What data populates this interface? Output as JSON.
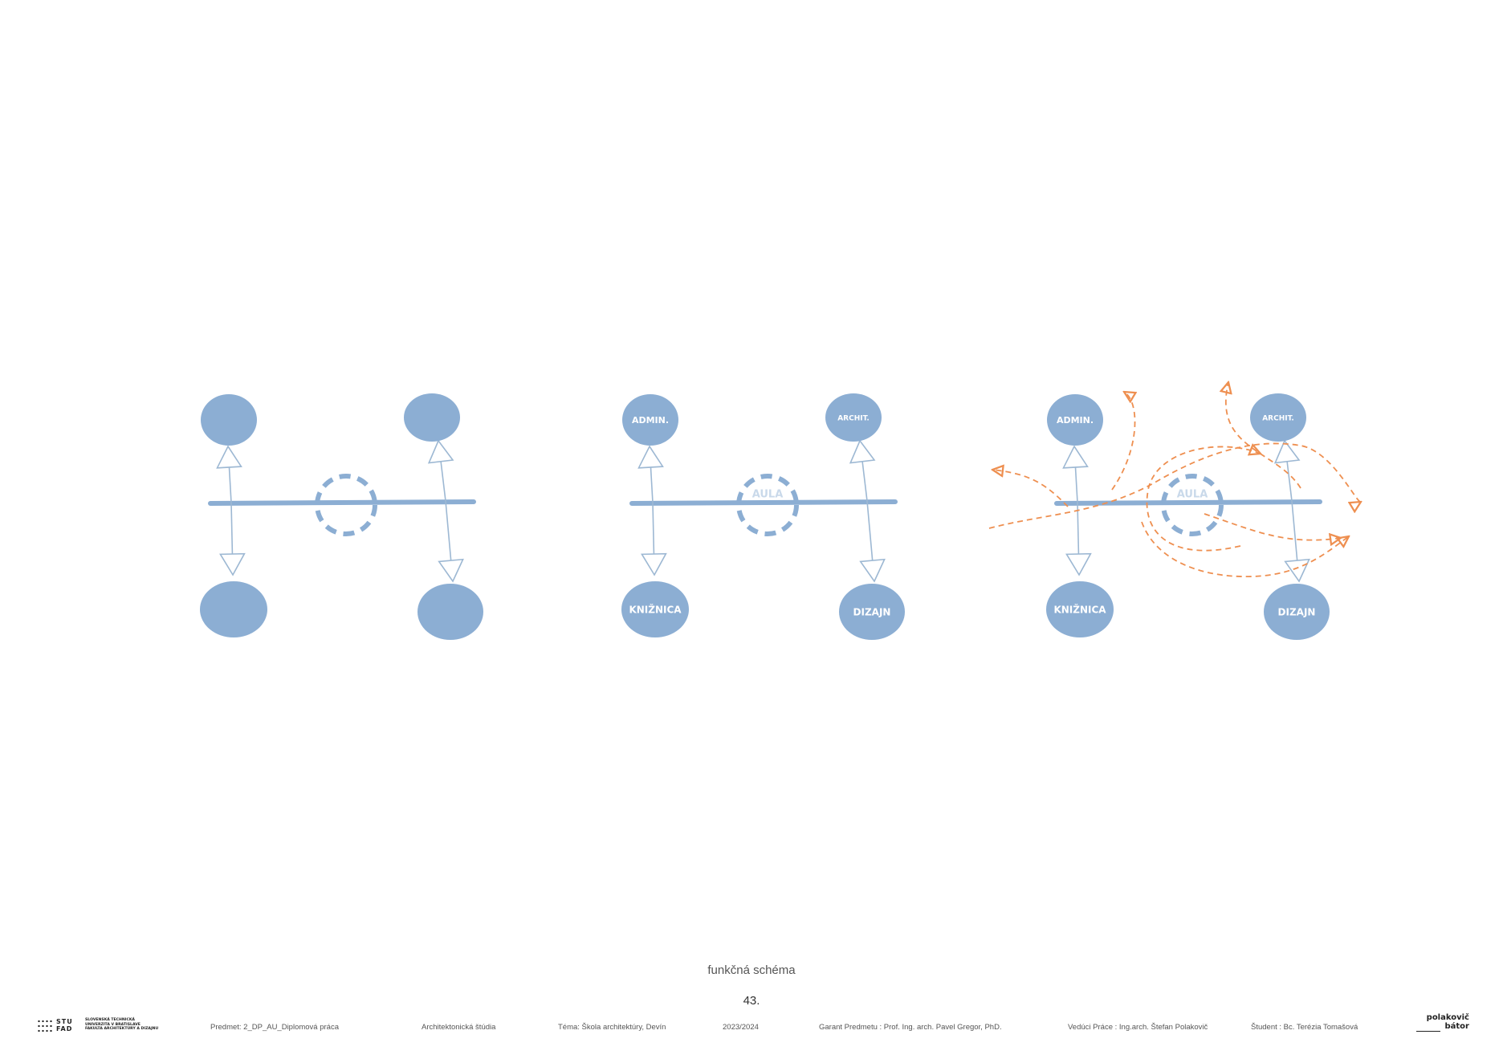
{
  "diagram": {
    "caption": "funkčná schéma",
    "page_number": "43.",
    "panels": [
      {
        "id": "panel-1",
        "labels": {
          "top_left": "",
          "top_right": "",
          "bottom_left": "",
          "bottom_right": "",
          "center": ""
        },
        "flows": false
      },
      {
        "id": "panel-2",
        "labels": {
          "top_left": "ADMIN.",
          "top_right": "ARCHIT.",
          "bottom_left": "KNIŽNICA",
          "bottom_right": "DIZAJN",
          "center": "AULA"
        },
        "flows": false
      },
      {
        "id": "panel-3",
        "labels": {
          "top_left": "ADMIN.",
          "top_right": "ARCHIT.",
          "bottom_left": "KNIŽNICA",
          "bottom_right": "DIZAJN",
          "center": "AULA"
        },
        "flows": true
      }
    ],
    "colors": {
      "node": "#8caed3",
      "spine": "#8caed3",
      "arrow": "#9db8d3",
      "flow": "#ee8f50"
    }
  },
  "footer": {
    "logo_stu": "STU\nFAD",
    "logo_university": "SLOVENSKÁ TECHNICKÁ\nUNIVERZITA V BRATISLAVE\nFAKULTA ARCHITEKTÚRY A DIZAJNU",
    "subject": "Predmet: 2_DP_AU_Diplomová práca",
    "type": "Architektonická štúdia",
    "theme": "Téma: Škola architektúry, Devín",
    "year": "2023/2024",
    "guarantor": "Garant Predmetu : Prof. Ing. arch. Pavel Gregor, PhD.",
    "supervisor": "Vedúci Práce : Ing.arch. Štefan Polakovič",
    "student": "Študent : Bc. Terézia Tomašová",
    "logo_pb_top": "polakovič",
    "logo_pb_bottom": "bátor"
  }
}
